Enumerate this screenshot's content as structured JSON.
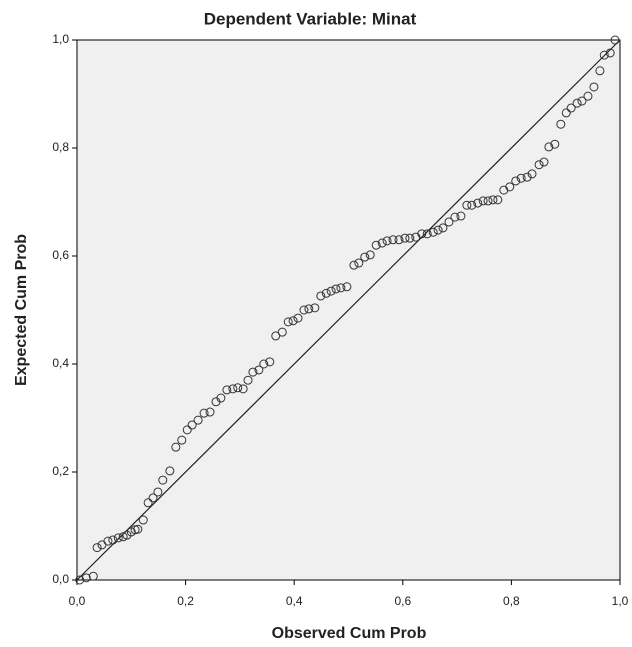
{
  "chart_data": {
    "type": "scatter",
    "title": "Dependent Variable: Minat",
    "x_label": "Observed Cum Prob",
    "y_label": "Expected Cum Prob",
    "xlim": [
      0,
      1
    ],
    "ylim": [
      0,
      1
    ],
    "xticks": [
      {
        "value": 0,
        "label": "0,0"
      },
      {
        "value": 0.2,
        "label": "0,2"
      },
      {
        "value": 0.4,
        "label": "0,4"
      },
      {
        "value": 0.6,
        "label": "0,6"
      },
      {
        "value": 0.8,
        "label": "0,8"
      },
      {
        "value": 1,
        "label": "1,0"
      }
    ],
    "yticks": [
      {
        "value": 0,
        "label": "0,0"
      },
      {
        "value": 0.2,
        "label": "0,2"
      },
      {
        "value": 0.4,
        "label": "0,4"
      },
      {
        "value": 0.6,
        "label": "0,6"
      },
      {
        "value": 0.8,
        "label": "0,8"
      },
      {
        "value": 1,
        "label": "1,0"
      }
    ],
    "reference_line": true,
    "color": "#333333",
    "background": "#f0f0f0",
    "x": [
      0.005,
      0.017,
      0.03,
      0.037,
      0.046,
      0.057,
      0.066,
      0.076,
      0.085,
      0.092,
      0.1,
      0.107,
      0.112,
      0.122,
      0.131,
      0.14,
      0.149,
      0.158,
      0.171,
      0.182,
      0.193,
      0.203,
      0.212,
      0.223,
      0.234,
      0.245,
      0.256,
      0.265,
      0.276,
      0.287,
      0.296,
      0.306,
      0.315,
      0.324,
      0.335,
      0.344,
      0.355,
      0.366,
      0.378,
      0.389,
      0.398,
      0.407,
      0.418,
      0.427,
      0.438,
      0.449,
      0.459,
      0.468,
      0.477,
      0.486,
      0.497,
      0.51,
      0.519,
      0.53,
      0.54,
      0.551,
      0.562,
      0.571,
      0.582,
      0.593,
      0.604,
      0.613,
      0.624,
      0.635,
      0.645,
      0.656,
      0.665,
      0.674,
      0.685,
      0.696,
      0.707,
      0.718,
      0.727,
      0.738,
      0.748,
      0.757,
      0.766,
      0.775,
      0.786,
      0.797,
      0.808,
      0.818,
      0.829,
      0.838,
      0.851,
      0.86,
      0.869,
      0.88,
      0.891,
      0.901,
      0.91,
      0.921,
      0.93,
      0.941,
      0.952,
      0.963,
      0.971,
      0.982,
      0.991
    ],
    "y": [
      0.0,
      0.004,
      0.007,
      0.06,
      0.065,
      0.072,
      0.074,
      0.078,
      0.08,
      0.083,
      0.089,
      0.093,
      0.094,
      0.111,
      0.143,
      0.152,
      0.163,
      0.185,
      0.202,
      0.246,
      0.259,
      0.278,
      0.287,
      0.296,
      0.309,
      0.311,
      0.33,
      0.337,
      0.352,
      0.354,
      0.356,
      0.354,
      0.37,
      0.385,
      0.389,
      0.4,
      0.404,
      0.452,
      0.459,
      0.478,
      0.48,
      0.485,
      0.5,
      0.502,
      0.504,
      0.526,
      0.531,
      0.535,
      0.539,
      0.541,
      0.543,
      0.583,
      0.587,
      0.598,
      0.602,
      0.62,
      0.624,
      0.628,
      0.63,
      0.63,
      0.633,
      0.633,
      0.635,
      0.641,
      0.641,
      0.644,
      0.648,
      0.652,
      0.663,
      0.672,
      0.674,
      0.694,
      0.694,
      0.698,
      0.702,
      0.702,
      0.704,
      0.704,
      0.722,
      0.728,
      0.739,
      0.744,
      0.746,
      0.752,
      0.769,
      0.774,
      0.802,
      0.807,
      0.844,
      0.865,
      0.874,
      0.883,
      0.887,
      0.896,
      0.913,
      0.943,
      0.972,
      0.976,
      1.0
    ]
  }
}
